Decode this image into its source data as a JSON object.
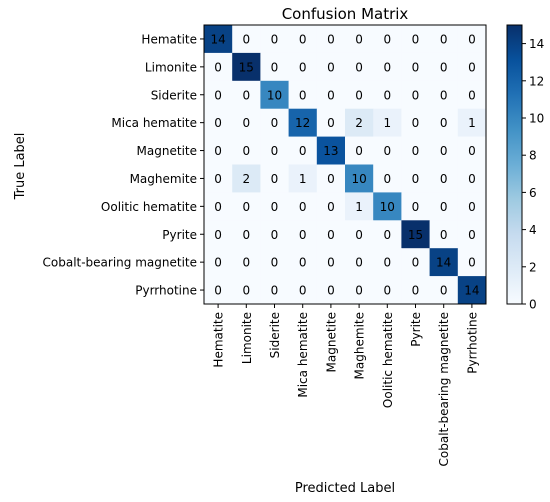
{
  "chart_data": {
    "type": "heatmap",
    "title": "Confusion Matrix",
    "xlabel": "Predicted Label",
    "ylabel": "True Label",
    "labels": [
      "Hematite",
      "Limonite",
      "Siderite",
      "Mica hematite",
      "Magnetite",
      "Maghemite",
      "Oolitic hematite",
      "Pyrite",
      "Cobalt-bearing magnetite",
      "Pyrrhotine"
    ],
    "matrix": [
      [
        14,
        0,
        0,
        0,
        0,
        0,
        0,
        0,
        0,
        0
      ],
      [
        0,
        15,
        0,
        0,
        0,
        0,
        0,
        0,
        0,
        0
      ],
      [
        0,
        0,
        10,
        0,
        0,
        0,
        0,
        0,
        0,
        0
      ],
      [
        0,
        0,
        0,
        12,
        0,
        2,
        1,
        0,
        0,
        1
      ],
      [
        0,
        0,
        0,
        0,
        13,
        0,
        0,
        0,
        0,
        0
      ],
      [
        0,
        2,
        0,
        1,
        0,
        10,
        0,
        0,
        0,
        0
      ],
      [
        0,
        0,
        0,
        0,
        0,
        1,
        10,
        0,
        0,
        0
      ],
      [
        0,
        0,
        0,
        0,
        0,
        0,
        0,
        15,
        0,
        0
      ],
      [
        0,
        0,
        0,
        0,
        0,
        0,
        0,
        0,
        14,
        0
      ],
      [
        0,
        0,
        0,
        0,
        0,
        0,
        0,
        0,
        0,
        14
      ]
    ],
    "colorbar": {
      "ticks": [
        0,
        2,
        4,
        6,
        8,
        10,
        12,
        14
      ],
      "range": [
        0,
        15
      ],
      "colormap": "Blues"
    }
  }
}
